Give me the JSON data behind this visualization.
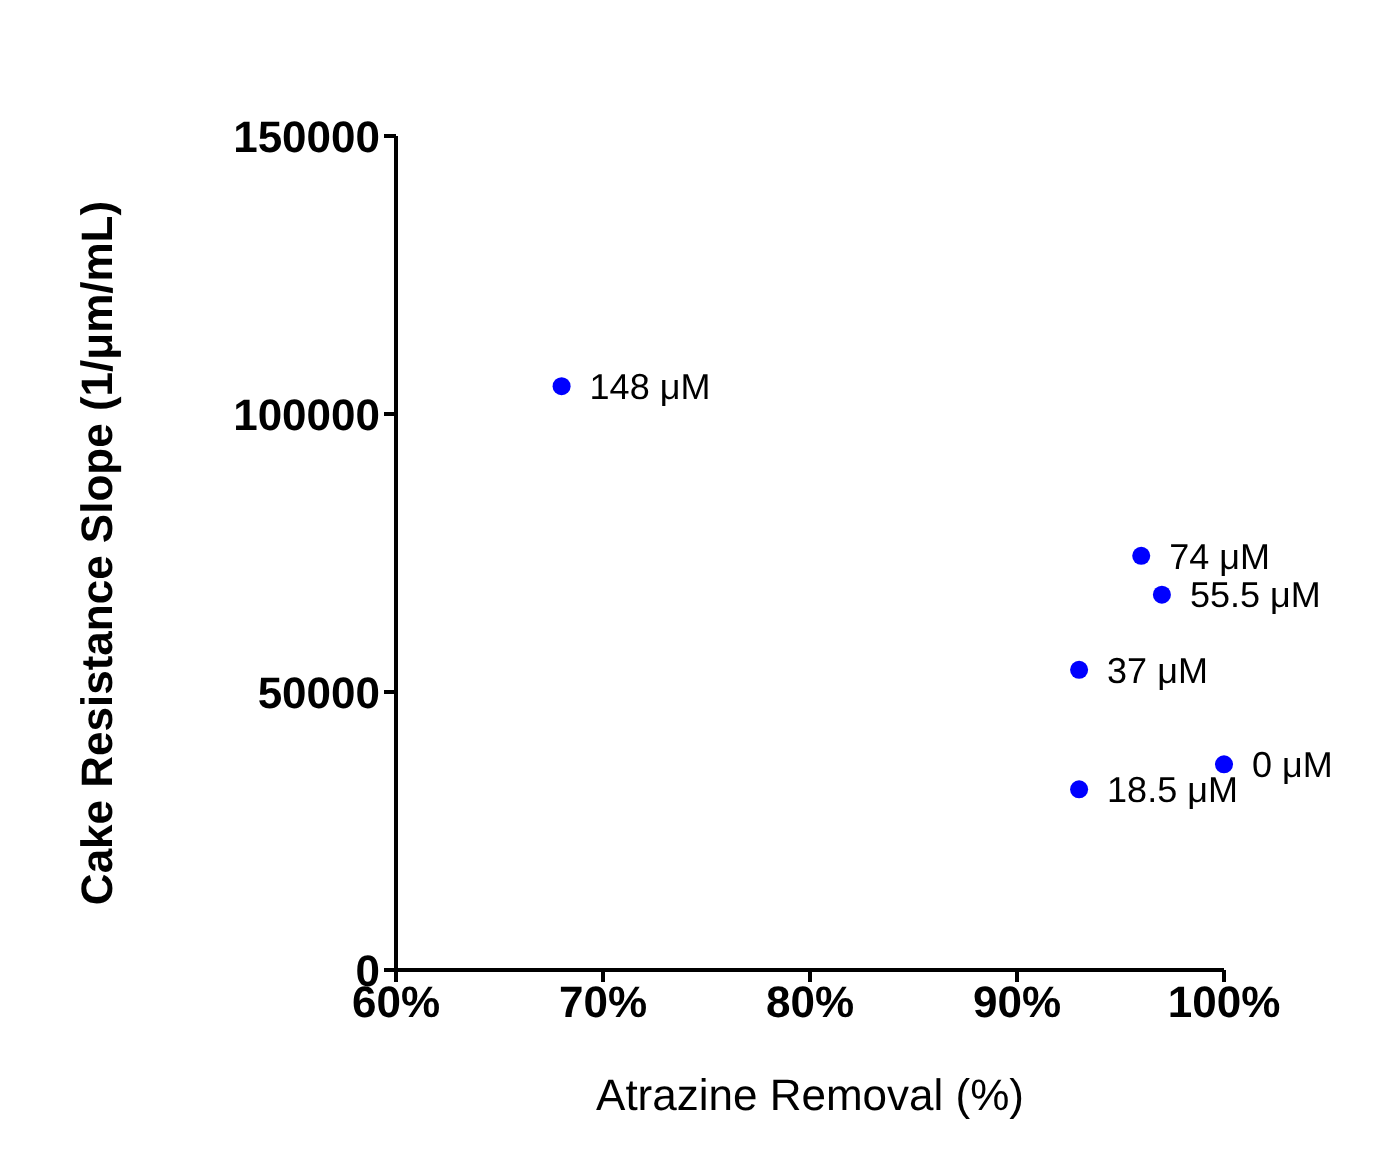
{
  "chart_data": {
    "type": "scatter",
    "xlabel": "Atrazine Removal (%)",
    "ylabel": "Cake Resistance Slope (1/μm/mL)",
    "x": [
      68,
      96,
      97,
      93,
      100,
      93
    ],
    "series": [
      {
        "color": "#0000ff",
        "values": [
          105000,
          74500,
          67500,
          54000,
          37000,
          32500
        ]
      }
    ],
    "marker": "circle",
    "grid": false,
    "legend": false,
    "xlim": [
      60,
      100
    ],
    "xticks": [
      {
        "value": 60,
        "label": "60%"
      },
      {
        "value": 70,
        "label": "70%"
      },
      {
        "value": 80,
        "label": "80%"
      },
      {
        "value": 90,
        "label": "90%"
      },
      {
        "value": 100,
        "label": "100%"
      }
    ],
    "ylim": [
      0,
      150000
    ],
    "yticks": [
      0,
      50000,
      100000,
      150000
    ],
    "annotations": [
      {
        "text": "148 μM",
        "x": 68,
        "y": 105000
      },
      {
        "text": "74 μM",
        "x": 96,
        "y": 74500
      },
      {
        "text": "55.5 μM",
        "x": 97,
        "y": 67500
      },
      {
        "text": "37 μM",
        "x": 93,
        "y": 54000
      },
      {
        "text": "0 μM",
        "x": 100,
        "y": 37000
      },
      {
        "text": "18.5 μM",
        "x": 93,
        "y": 32500
      }
    ]
  }
}
